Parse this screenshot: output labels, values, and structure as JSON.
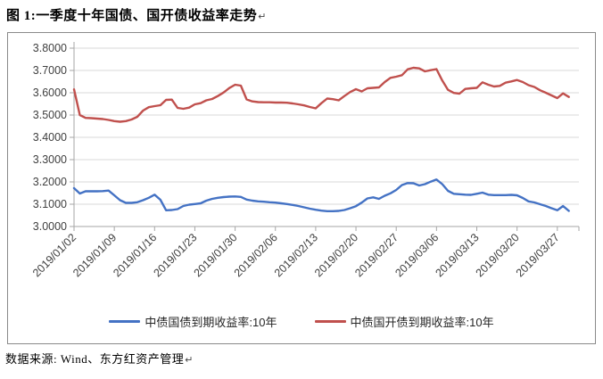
{
  "title": {
    "text": "图 1:一季度十年国债、国开债收益率走势",
    "return_mark": "↵"
  },
  "footer": {
    "text": "数据来源: Wind、东方红资产管理",
    "return_mark": "↵"
  },
  "colors": {
    "treasury_line": "#4472C4",
    "cdb_line": "#C0504D",
    "gridline": "#d9d9d9",
    "axis": "#a6a6a6",
    "tick_label": "#404040",
    "frame_border": "#8a8a8a"
  },
  "chart_data": {
    "type": "line",
    "title": "",
    "xlabel": "",
    "ylabel": "",
    "grid": true,
    "legend_position": "bottom",
    "ylim": [
      3.0,
      3.8
    ],
    "y_ticks": [
      3.0,
      3.1,
      3.2,
      3.3,
      3.4,
      3.5,
      3.6,
      3.7,
      3.8
    ],
    "y_tick_format_decimals": 4,
    "x_unit": "calendar days since 2019/01/02, daily points (values carried over weekends/holidays)",
    "x_tick_days": [
      0,
      7,
      14,
      21,
      28,
      35,
      42,
      49,
      56,
      63,
      70,
      77,
      84
    ],
    "x_tick_labels": [
      "2019/01/02",
      "2019/01/09",
      "2019/01/16",
      "2019/01/23",
      "2019/01/30",
      "2019/02/06",
      "2019/02/13",
      "2019/02/20",
      "2019/02/27",
      "2019/03/06",
      "2019/03/13",
      "2019/03/20",
      "2019/03/27"
    ],
    "x_total_days": 87,
    "series": [
      {
        "name": "中债国债到期收益率:10年",
        "color": "#4472C4",
        "values": [
          3.172,
          3.148,
          3.158,
          3.158,
          3.158,
          3.159,
          3.161,
          3.14,
          3.118,
          3.106,
          3.106,
          3.109,
          3.118,
          3.129,
          3.143,
          3.12,
          3.073,
          3.074,
          3.078,
          3.092,
          3.098,
          3.101,
          3.104,
          3.116,
          3.124,
          3.129,
          3.132,
          3.134,
          3.135,
          3.133,
          3.121,
          3.116,
          3.113,
          3.111,
          3.109,
          3.107,
          3.104,
          3.101,
          3.097,
          3.092,
          3.086,
          3.08,
          3.075,
          3.071,
          3.069,
          3.069,
          3.07,
          3.074,
          3.082,
          3.091,
          3.107,
          3.126,
          3.131,
          3.124,
          3.138,
          3.149,
          3.164,
          3.186,
          3.195,
          3.194,
          3.184,
          3.19,
          3.201,
          3.211,
          3.19,
          3.16,
          3.147,
          3.145,
          3.143,
          3.142,
          3.147,
          3.152,
          3.143,
          3.141,
          3.141,
          3.141,
          3.142,
          3.14,
          3.128,
          3.113,
          3.108,
          3.1,
          3.092,
          3.082,
          3.073,
          3.092,
          3.07
        ]
      },
      {
        "name": "中债国开债到期收益率:10年",
        "color": "#C0504D",
        "values": [
          3.615,
          3.5,
          3.487,
          3.486,
          3.484,
          3.482,
          3.478,
          3.473,
          3.47,
          3.473,
          3.48,
          3.492,
          3.52,
          3.535,
          3.54,
          3.544,
          3.568,
          3.569,
          3.532,
          3.528,
          3.533,
          3.548,
          3.553,
          3.566,
          3.572,
          3.585,
          3.601,
          3.621,
          3.636,
          3.632,
          3.57,
          3.561,
          3.558,
          3.557,
          3.557,
          3.556,
          3.556,
          3.555,
          3.552,
          3.548,
          3.543,
          3.536,
          3.53,
          3.553,
          3.574,
          3.571,
          3.566,
          3.585,
          3.603,
          3.616,
          3.606,
          3.62,
          3.622,
          3.624,
          3.648,
          3.667,
          3.672,
          3.679,
          3.705,
          3.712,
          3.709,
          3.696,
          3.701,
          3.706,
          3.655,
          3.613,
          3.599,
          3.596,
          3.617,
          3.62,
          3.622,
          3.647,
          3.636,
          3.628,
          3.631,
          3.645,
          3.651,
          3.657,
          3.648,
          3.634,
          3.626,
          3.611,
          3.6,
          3.588,
          3.576,
          3.597,
          3.581
        ]
      }
    ]
  }
}
